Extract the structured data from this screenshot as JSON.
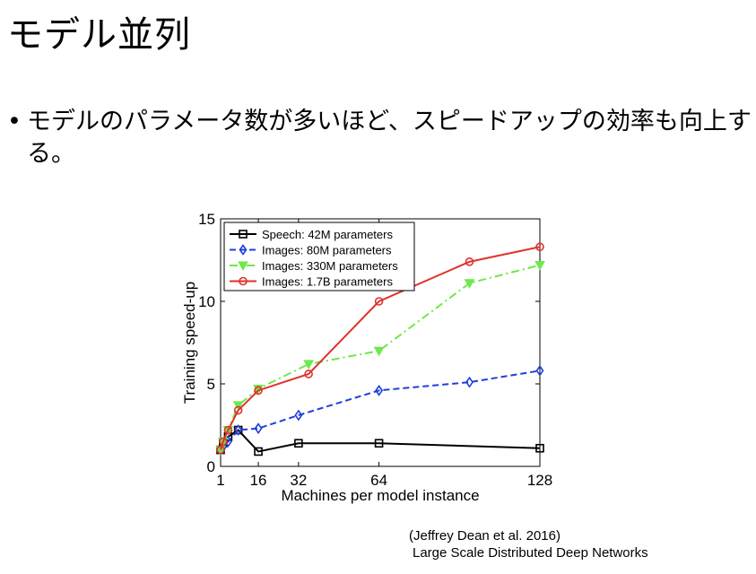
{
  "slide": {
    "title": "モデル並列",
    "bullet": "モデルのパラメータ数が多いほど、スピードアップの効率も向上する。"
  },
  "citation": {
    "line1": "(Jeffrey Dean et al. 2016)",
    "line2": "Large Scale Distributed Deep Networks"
  },
  "chart_data": {
    "type": "line",
    "xlabel": "Machines per model instance",
    "ylabel": "Training speed-up",
    "xlim": [
      1,
      128
    ],
    "ylim": [
      0,
      15
    ],
    "xticks": [
      1,
      16,
      32,
      64,
      128
    ],
    "yticks": [
      0,
      5,
      10,
      15
    ],
    "grid": false,
    "legend_position": "top-left",
    "series": [
      {
        "name": "Speech: 42M parameters",
        "color": "#000000",
        "dash": "solid",
        "marker": "square",
        "x": [
          1,
          2,
          4,
          8,
          16,
          32,
          64,
          128
        ],
        "y": [
          1.0,
          1.4,
          1.8,
          2.2,
          0.9,
          1.4,
          1.4,
          1.1
        ]
      },
      {
        "name": "Images: 80M parameters",
        "color": "#1f3fdc",
        "dash": "dashed",
        "marker": "diamond",
        "x": [
          1,
          2,
          4,
          8,
          16,
          32,
          64,
          100,
          128
        ],
        "y": [
          1.0,
          1.2,
          1.5,
          2.2,
          2.3,
          3.1,
          4.6,
          5.1,
          5.8
        ]
      },
      {
        "name": "Images: 330M parameters",
        "color": "#6ee84a",
        "dash": "dashdot",
        "marker": "triangle-down",
        "x": [
          1,
          2,
          4,
          8,
          16,
          36,
          64,
          100,
          128
        ],
        "y": [
          1.0,
          1.5,
          2.2,
          3.7,
          4.7,
          6.2,
          7.0,
          11.1,
          12.2
        ]
      },
      {
        "name": "Images: 1.7B parameters",
        "color": "#e0322b",
        "dash": "solid",
        "marker": "circle",
        "x": [
          1,
          2,
          4,
          8,
          16,
          36,
          64,
          100,
          128
        ],
        "y": [
          1.0,
          1.5,
          2.2,
          3.4,
          4.6,
          5.6,
          10.0,
          12.4,
          13.3
        ]
      }
    ]
  }
}
